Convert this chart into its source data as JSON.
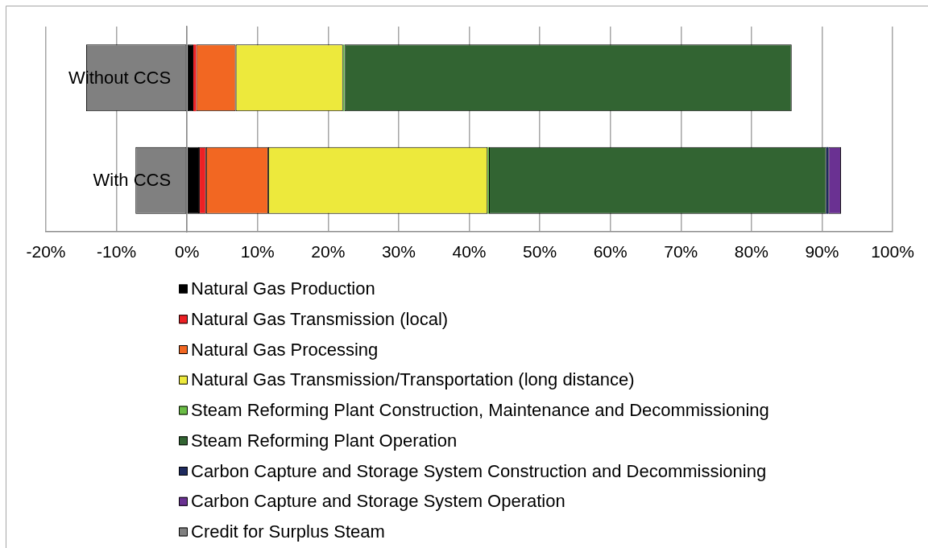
{
  "chart_data": {
    "type": "bar",
    "orientation": "horizontal",
    "stacked": true,
    "categories": [
      "Without CCS",
      "With CCS"
    ],
    "series": [
      {
        "name": "Natural Gas Production",
        "color": "#000000",
        "values": [
          0.9,
          1.7
        ]
      },
      {
        "name": "Natural Gas Transmission (local)",
        "color": "#ed2024",
        "values": [
          0.4,
          1.0
        ]
      },
      {
        "name": "Natural Gas Processing",
        "color": "#f26722",
        "values": [
          5.6,
          8.8
        ]
      },
      {
        "name": "Natural Gas Transmission/Transportation (long distance)",
        "color": "#ede93c",
        "values": [
          15.2,
          31.1
        ]
      },
      {
        "name": "Steam Reforming Plant Construction, Maintenance and Decommissioning",
        "color": "#6abd45",
        "values": [
          0.2,
          0.2
        ]
      },
      {
        "name": "Steam Reforming Plant Operation",
        "color": "#326432",
        "values": [
          63.4,
          47.8
        ]
      },
      {
        "name": "Carbon Capture and Storage System Construction and Decommissioning",
        "color": "#1e2a5e",
        "values": [
          null,
          0.3
        ]
      },
      {
        "name": "Carbon Capture and Storage System Operation",
        "color": "#6a3192",
        "values": [
          null,
          1.8
        ]
      },
      {
        "name": "Credit for Surplus Steam",
        "color": "#808080",
        "values": [
          -14.3,
          -7.3
        ]
      }
    ],
    "xlim": [
      -20,
      100
    ],
    "xticks": [
      {
        "value": -20,
        "label": "-20%"
      },
      {
        "value": -10,
        "label": "-10%"
      },
      {
        "value": 0,
        "label": "0%"
      },
      {
        "value": 10,
        "label": "10%"
      },
      {
        "value": 20,
        "label": "20%"
      },
      {
        "value": 30,
        "label": "30%"
      },
      {
        "value": 40,
        "label": "40%"
      },
      {
        "value": 50,
        "label": "50%"
      },
      {
        "value": 60,
        "label": "60%"
      },
      {
        "value": 70,
        "label": "70%"
      },
      {
        "value": 80,
        "label": "80%"
      },
      {
        "value": 90,
        "label": "90%"
      },
      {
        "value": 100,
        "label": "100%"
      }
    ],
    "grid": "x",
    "legend": "bottom"
  }
}
